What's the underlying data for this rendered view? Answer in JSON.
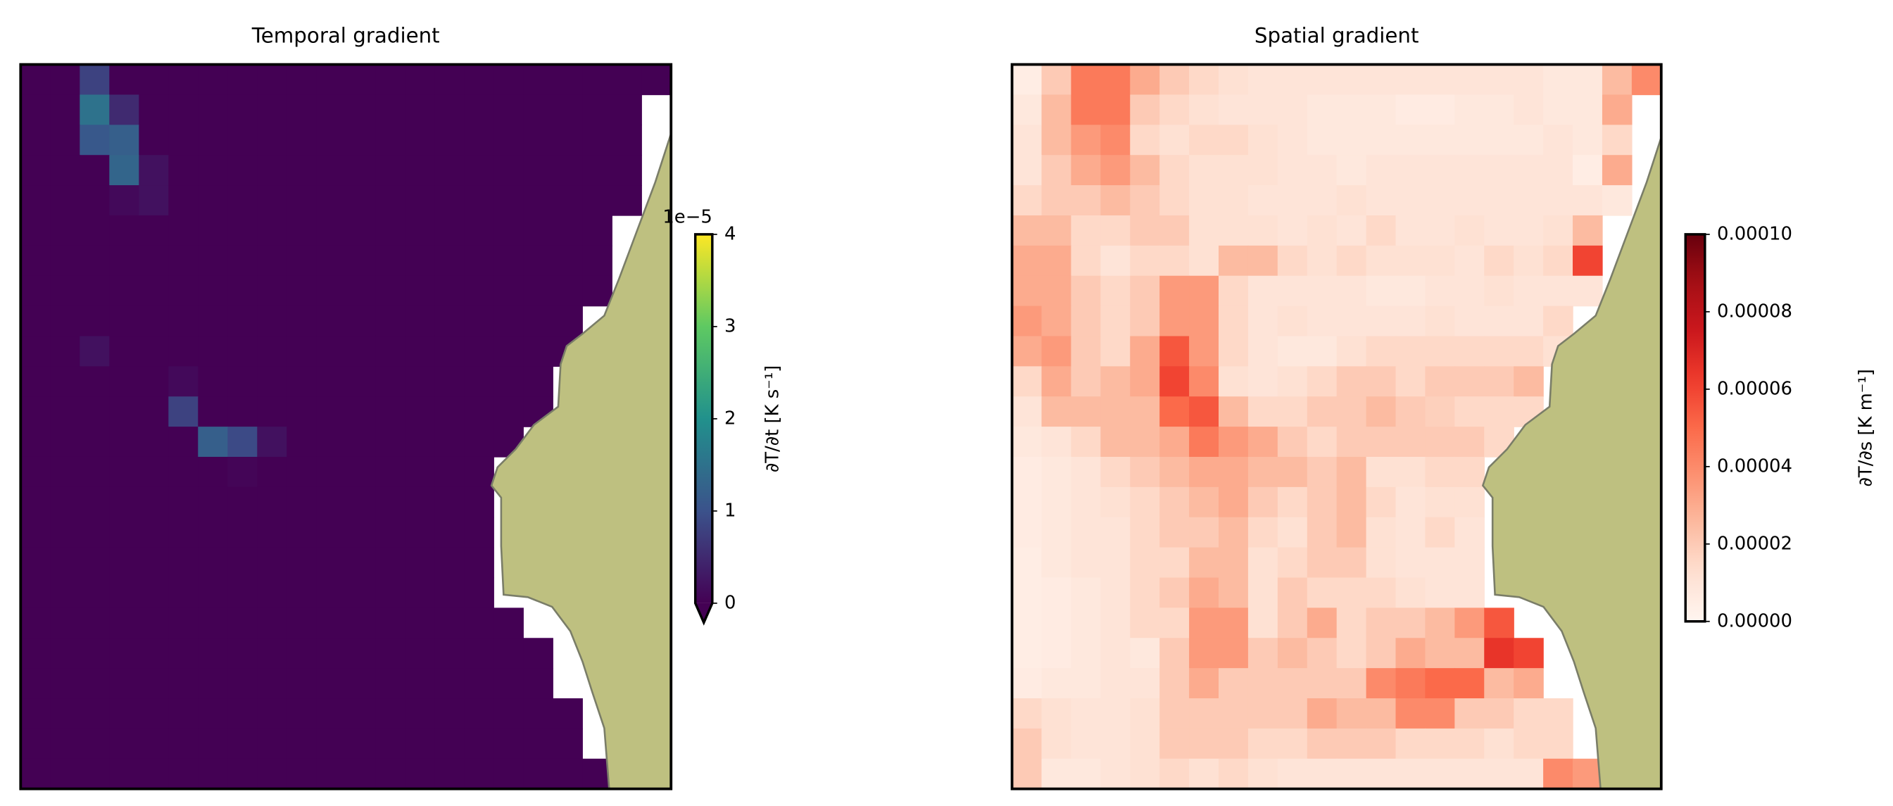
{
  "chart_data": [
    {
      "type": "heatmap",
      "title": "Temporal gradient",
      "colormap": "viridis",
      "colorbar_extend": "min",
      "colorbar_label": "∂T/∂t [K s⁻¹]",
      "colorbar_offset": "1e−5",
      "zlim": [
        0,
        4
      ],
      "zticks": [
        0,
        1,
        2,
        3,
        4
      ],
      "z": [
        [
          0,
          0,
          0.8,
          0,
          0,
          0,
          0,
          0,
          0,
          0,
          0,
          0,
          0,
          0,
          0,
          0,
          0,
          0,
          0,
          0,
          0,
          0
        ],
        [
          0,
          0,
          1.5,
          0.5,
          0,
          0,
          0,
          0,
          0,
          0,
          0,
          0,
          0,
          0,
          0,
          0,
          0,
          0,
          0,
          0,
          0,
          null
        ],
        [
          0,
          0,
          1.1,
          1.2,
          0,
          0,
          0,
          0,
          0,
          0,
          0,
          0,
          0,
          0,
          0,
          0,
          0,
          0,
          0,
          0,
          0,
          null
        ],
        [
          0,
          0,
          0,
          1.3,
          0.2,
          0,
          0,
          0,
          0,
          0,
          0,
          0,
          0,
          0,
          0,
          0,
          0,
          0,
          0,
          0,
          0,
          null
        ],
        [
          0,
          0,
          0,
          0.1,
          0.2,
          0,
          0,
          0,
          0,
          0,
          0,
          0,
          0,
          0,
          0,
          0,
          0,
          0,
          0,
          0,
          0,
          null
        ],
        [
          0,
          0,
          0,
          0,
          0,
          0,
          0,
          0,
          0,
          0,
          0,
          0,
          0,
          0,
          0,
          0,
          0,
          0,
          0,
          0,
          null,
          null
        ],
        [
          0,
          0,
          0,
          0,
          0,
          0,
          0,
          0,
          0,
          0,
          0,
          0,
          0,
          0,
          0,
          0,
          0,
          0,
          0,
          0,
          null,
          null
        ],
        [
          0,
          0,
          0,
          0,
          0,
          0,
          0,
          0,
          0,
          0,
          0,
          0,
          0,
          0,
          0,
          0,
          0,
          0,
          0,
          0,
          null,
          null
        ],
        [
          0,
          0,
          0,
          0,
          0,
          0,
          0,
          0,
          0,
          0,
          0,
          0,
          0,
          0,
          0,
          0,
          0,
          0,
          0,
          null,
          null,
          null
        ],
        [
          0,
          0,
          0.2,
          0,
          0,
          0,
          0,
          0,
          0,
          0,
          0,
          0,
          0,
          0,
          0,
          0,
          0,
          0,
          0,
          null,
          null,
          null
        ],
        [
          0,
          0,
          0,
          0,
          0,
          0.1,
          0,
          0,
          0,
          0,
          0,
          0,
          0,
          0,
          0,
          0,
          0,
          0,
          null,
          null,
          null,
          null
        ],
        [
          0,
          0,
          0,
          0,
          0,
          0.8,
          0,
          0,
          0,
          0,
          0,
          0,
          0,
          0,
          0,
          0,
          0,
          0,
          null,
          null,
          null,
          null
        ],
        [
          0,
          0,
          0,
          0,
          0,
          0,
          1.2,
          0.9,
          0.2,
          0,
          0,
          0,
          0,
          0,
          0,
          0,
          0,
          null,
          null,
          null,
          null,
          null
        ],
        [
          0,
          0,
          0,
          0,
          0,
          0,
          0,
          0.05,
          0,
          0,
          0,
          0,
          0,
          0,
          0,
          0,
          null,
          null,
          null,
          null,
          null,
          null
        ],
        [
          0,
          0,
          0,
          0,
          0,
          0,
          0,
          0,
          0,
          0,
          0,
          0,
          0,
          0,
          0,
          0,
          null,
          null,
          null,
          null,
          null,
          null
        ],
        [
          0,
          0,
          0,
          0,
          0,
          0,
          0,
          0,
          0,
          0,
          0,
          0,
          0,
          0,
          0,
          0,
          null,
          null,
          null,
          null,
          null,
          null
        ],
        [
          0,
          0,
          0,
          0,
          0,
          0,
          0,
          0,
          0,
          0,
          0,
          0,
          0,
          0,
          0,
          0,
          null,
          null,
          null,
          null,
          null,
          null
        ],
        [
          0,
          0,
          0,
          0,
          0,
          0,
          0,
          0,
          0,
          0,
          0,
          0,
          0,
          0,
          0,
          0,
          null,
          null,
          null,
          null,
          null,
          null
        ],
        [
          0,
          0,
          0,
          0,
          0,
          0,
          0,
          0,
          0,
          0,
          0,
          0,
          0,
          0,
          0,
          0,
          0,
          null,
          null,
          null,
          null,
          null
        ],
        [
          0,
          0,
          0,
          0,
          0,
          0,
          0,
          0,
          0,
          0,
          0,
          0,
          0,
          0,
          0,
          0,
          0,
          0,
          null,
          null,
          null,
          null
        ],
        [
          0,
          0,
          0,
          0,
          0,
          0,
          0,
          0,
          0,
          0,
          0,
          0,
          0,
          0,
          0,
          0,
          0,
          0,
          null,
          null,
          null,
          null
        ],
        [
          0,
          0,
          0,
          0,
          0,
          0,
          0,
          0,
          0,
          0,
          0,
          0,
          0,
          0,
          0,
          0,
          0,
          0,
          0,
          null,
          null,
          null
        ],
        [
          0,
          0,
          0,
          0,
          0,
          0,
          0,
          0,
          0,
          0,
          0,
          0,
          0,
          0,
          0,
          0,
          0,
          0,
          0,
          null,
          null,
          null
        ],
        [
          0,
          0,
          0,
          0,
          0,
          0,
          0,
          0,
          0,
          0,
          0,
          0,
          0,
          0,
          0,
          0,
          0,
          0,
          0,
          0,
          null,
          null
        ]
      ]
    },
    {
      "type": "heatmap",
      "title": "Spatial gradient",
      "colormap": "Reds",
      "colorbar_label": "∂T/∂s [K m⁻¹]",
      "zlim": [
        0,
        0.0001
      ],
      "zticks": [
        {
          "value": 0,
          "label": "0.00000"
        },
        {
          "value": 2e-05,
          "label": "0.00002"
        },
        {
          "value": 4e-05,
          "label": "0.00004"
        },
        {
          "value": 6e-05,
          "label": "0.00006"
        },
        {
          "value": 8e-05,
          "label": "0.00008"
        },
        {
          "value": 0.0001,
          "label": "0.00010"
        }
      ],
      "z": [
        [
          5e-06,
          2e-05,
          4.5e-05,
          4.5e-05,
          3e-05,
          2e-05,
          1.5e-05,
          1.2e-05,
          1e-05,
          1e-05,
          1e-05,
          1e-05,
          1e-05,
          1e-05,
          1e-05,
          1e-05,
          1e-05,
          1e-05,
          8e-06,
          8e-06,
          2.5e-05,
          4e-05
        ],
        [
          8e-06,
          2.5e-05,
          4.5e-05,
          4.5e-05,
          2e-05,
          1.5e-05,
          1.2e-05,
          1e-05,
          1e-05,
          1e-05,
          8e-06,
          8e-06,
          8e-06,
          6e-06,
          6e-06,
          8e-06,
          8e-06,
          1e-05,
          8e-06,
          8e-06,
          3e-05,
          null
        ],
        [
          1e-05,
          2.5e-05,
          3.5e-05,
          4e-05,
          1.5e-05,
          1.2e-05,
          1.5e-05,
          1.5e-05,
          1.2e-05,
          1e-05,
          8e-06,
          8e-06,
          8e-06,
          8e-06,
          8e-06,
          8e-06,
          8e-06,
          8e-06,
          1e-05,
          8e-06,
          1.5e-05,
          null
        ],
        [
          1e-05,
          2e-05,
          3e-05,
          3.5e-05,
          2.5e-05,
          1.5e-05,
          1.2e-05,
          1.2e-05,
          1.2e-05,
          1e-05,
          1e-05,
          8e-06,
          1e-05,
          1e-05,
          1e-05,
          1e-05,
          1e-05,
          1e-05,
          1e-05,
          5e-06,
          3e-05,
          null
        ],
        [
          1.5e-05,
          2e-05,
          2e-05,
          2.5e-05,
          2e-05,
          1.5e-05,
          1.2e-05,
          1.2e-05,
          1e-05,
          1e-05,
          1e-05,
          1.2e-05,
          1e-05,
          1e-05,
          1e-05,
          1e-05,
          1e-05,
          1e-05,
          1e-05,
          1e-05,
          8e-06,
          null
        ],
        [
          2.5e-05,
          2.5e-05,
          1.5e-05,
          1.5e-05,
          2e-05,
          2e-05,
          1.2e-05,
          1.2e-05,
          1.2e-05,
          1e-05,
          1.2e-05,
          1e-05,
          1.5e-05,
          1e-05,
          1e-05,
          1.2e-05,
          1e-05,
          1e-05,
          1.2e-05,
          2.5e-05,
          null,
          null
        ],
        [
          3e-05,
          3e-05,
          1.5e-05,
          1e-05,
          1.5e-05,
          1.5e-05,
          1.2e-05,
          2.5e-05,
          2.5e-05,
          1.5e-05,
          1.2e-05,
          1.5e-05,
          1.2e-05,
          1.2e-05,
          1.2e-05,
          1e-05,
          1.5e-05,
          1.2e-05,
          1.5e-05,
          6e-05,
          null,
          null
        ],
        [
          3e-05,
          3e-05,
          2e-05,
          1.5e-05,
          2e-05,
          3.5e-05,
          3.5e-05,
          1.5e-05,
          1e-05,
          1e-05,
          1e-05,
          1e-05,
          8e-06,
          8e-06,
          1e-05,
          1e-05,
          1.2e-05,
          1e-05,
          1e-05,
          1e-05,
          null,
          null
        ],
        [
          3.5e-05,
          3e-05,
          2e-05,
          1.5e-05,
          2e-05,
          3.5e-05,
          3.5e-05,
          1.5e-05,
          1e-05,
          1.2e-05,
          1e-05,
          1e-05,
          1e-05,
          1e-05,
          1.2e-05,
          1e-05,
          1e-05,
          1e-05,
          1.5e-05,
          null,
          null,
          null
        ],
        [
          3e-05,
          3.5e-05,
          2e-05,
          1.5e-05,
          3e-05,
          5.5e-05,
          3.5e-05,
          1.5e-05,
          1e-05,
          8e-06,
          8e-06,
          1.2e-05,
          1.5e-05,
          1.5e-05,
          1.5e-05,
          1.5e-05,
          1.5e-05,
          1.5e-05,
          1.2e-05,
          null,
          null,
          null
        ],
        [
          1.5e-05,
          3e-05,
          2e-05,
          2.5e-05,
          3e-05,
          6e-05,
          4e-05,
          1.2e-05,
          1e-05,
          1.2e-05,
          1.5e-05,
          2e-05,
          2e-05,
          1.5e-05,
          2e-05,
          2e-05,
          2e-05,
          2.5e-05,
          null,
          null,
          null,
          null
        ],
        [
          1e-05,
          2.5e-05,
          2.5e-05,
          2.5e-05,
          2.5e-05,
          5e-05,
          5.5e-05,
          2.5e-05,
          1.5e-05,
          1.5e-05,
          2e-05,
          2e-05,
          2.5e-05,
          2e-05,
          1.8e-05,
          1.5e-05,
          1.5e-05,
          1.5e-05,
          null,
          null,
          null,
          null
        ],
        [
          8e-06,
          1e-05,
          1.5e-05,
          2.5e-05,
          2.5e-05,
          3e-05,
          4.5e-05,
          3.5e-05,
          3e-05,
          2e-05,
          1.5e-05,
          2e-05,
          2e-05,
          2e-05,
          2e-05,
          2e-05,
          1.5e-05,
          null,
          null,
          null,
          null,
          null
        ],
        [
          6e-06,
          8e-06,
          1e-05,
          1.5e-05,
          2e-05,
          2.5e-05,
          3e-05,
          3e-05,
          2.5e-05,
          2.5e-05,
          2e-05,
          2.5e-05,
          1.2e-05,
          1.2e-05,
          1.5e-05,
          1.5e-05,
          null,
          null,
          null,
          null,
          null,
          null
        ],
        [
          6e-06,
          8e-06,
          1e-05,
          1.2e-05,
          1.5e-05,
          2e-05,
          2.5e-05,
          3e-05,
          2e-05,
          1.5e-05,
          2e-05,
          2.5e-05,
          1.5e-05,
          1e-05,
          1.2e-05,
          1.2e-05,
          null,
          null,
          null,
          null,
          null,
          null
        ],
        [
          6e-06,
          8e-06,
          1e-05,
          1e-05,
          1.5e-05,
          2e-05,
          2e-05,
          2.5e-05,
          1.5e-05,
          1.2e-05,
          2e-05,
          2.5e-05,
          1.2e-05,
          1e-05,
          1.5e-05,
          1e-05,
          null,
          null,
          null,
          null,
          null,
          null
        ],
        [
          5e-06,
          8e-06,
          1e-05,
          1e-05,
          1.5e-05,
          1.5e-05,
          2.5e-05,
          2.5e-05,
          1.2e-05,
          1.5e-05,
          2e-05,
          2e-05,
          1.2e-05,
          1e-05,
          1e-05,
          1e-05,
          null,
          null,
          null,
          null,
          null,
          null
        ],
        [
          5e-06,
          6e-06,
          8e-06,
          1e-05,
          1.5e-05,
          2e-05,
          3e-05,
          2.5e-05,
          1.2e-05,
          2e-05,
          1.5e-05,
          1.5e-05,
          1.5e-05,
          1.2e-05,
          1e-05,
          1e-05,
          null,
          null,
          null,
          null,
          null,
          null
        ],
        [
          5e-06,
          6e-06,
          8e-06,
          1e-05,
          1.5e-05,
          1.5e-05,
          3.5e-05,
          3.5e-05,
          1.2e-05,
          2e-05,
          3e-05,
          1.5e-05,
          2e-05,
          2e-05,
          2.5e-05,
          3.5e-05,
          5.5e-05,
          null,
          null,
          null,
          null,
          null
        ],
        [
          5e-06,
          6e-06,
          8e-06,
          1e-05,
          8e-06,
          2e-05,
          3.5e-05,
          3.5e-05,
          2e-05,
          2.5e-05,
          2e-05,
          1.5e-05,
          2e-05,
          3e-05,
          2.5e-05,
          2.5e-05,
          6.5e-05,
          6e-05,
          null,
          null,
          null,
          null
        ],
        [
          6e-06,
          8e-06,
          8e-06,
          1e-05,
          1e-05,
          2e-05,
          3e-05,
          2e-05,
          2e-05,
          2e-05,
          2e-05,
          2e-05,
          4e-05,
          4.5e-05,
          5e-05,
          5e-05,
          2.5e-05,
          3e-05,
          null,
          null,
          null,
          null
        ],
        [
          1.5e-05,
          1.2e-05,
          1e-05,
          1e-05,
          1.2e-05,
          2e-05,
          2e-05,
          2e-05,
          2e-05,
          2e-05,
          3e-05,
          2.5e-05,
          2.5e-05,
          4e-05,
          4e-05,
          2e-05,
          2e-05,
          1.5e-05,
          1.5e-05,
          null,
          null,
          null
        ],
        [
          2e-05,
          1.2e-05,
          1e-05,
          1e-05,
          1.2e-05,
          2e-05,
          2e-05,
          2e-05,
          1.5e-05,
          1.5e-05,
          2e-05,
          2e-05,
          2e-05,
          1.5e-05,
          1.5e-05,
          1.5e-05,
          1.2e-05,
          1.5e-05,
          1.5e-05,
          null,
          null,
          null
        ],
        [
          2e-05,
          8e-06,
          8e-06,
          1e-05,
          1.2e-05,
          1.5e-05,
          1.2e-05,
          1.5e-05,
          1.2e-05,
          1e-05,
          1e-05,
          1e-05,
          1e-05,
          1e-05,
          1e-05,
          1e-05,
          1e-05,
          1e-05,
          4e-05,
          3.5e-05,
          null,
          null
        ]
      ]
    }
  ]
}
